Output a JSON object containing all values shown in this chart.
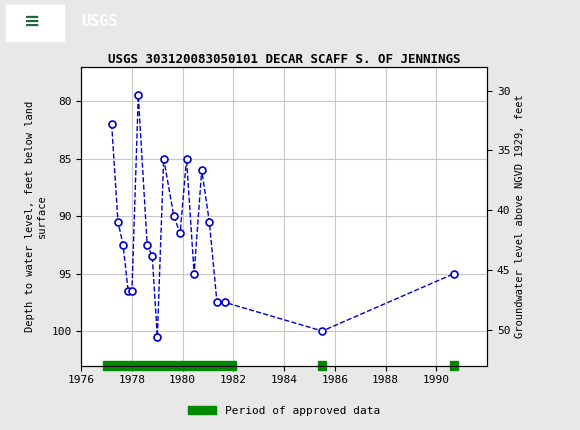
{
  "title": "USGS 303120083050101 DECAR SCAFF S. OF JENNINGS",
  "ylabel_left": "Depth to water level, feet below land\nsurface",
  "ylabel_right": "Groundwater level above NGVD 1929, feet",
  "background_color": "#e8e8e8",
  "plot_bg_color": "#ffffff",
  "header_color": "#1a6b3c",
  "line_color": "#0000cc",
  "marker_color": "#0000cc",
  "xlim": [
    1976,
    1992
  ],
  "ylim_left_top": 77,
  "ylim_left_bottom": 103,
  "ylim_right_top": 28,
  "ylim_right_bottom": 53,
  "xticks": [
    1976,
    1978,
    1980,
    1982,
    1984,
    1986,
    1988,
    1990
  ],
  "yticks_left": [
    80,
    85,
    90,
    95,
    100
  ],
  "yticks_right": [
    50,
    45,
    40,
    35,
    30
  ],
  "data_x": [
    1977.2,
    1977.45,
    1977.65,
    1977.85,
    1978.0,
    1978.25,
    1978.6,
    1978.8,
    1979.0,
    1979.25,
    1979.65,
    1979.9,
    1980.15,
    1980.45,
    1980.75,
    1981.05,
    1981.35,
    1981.65,
    1985.5,
    1990.7
  ],
  "data_y": [
    82.0,
    90.5,
    92.5,
    96.5,
    96.5,
    79.5,
    92.5,
    93.5,
    100.5,
    85.0,
    90.0,
    91.5,
    85.0,
    95.0,
    86.0,
    90.5,
    97.5,
    97.5,
    100.0,
    95.0
  ],
  "approved_bars": [
    {
      "xstart": 1976.85,
      "xend": 1982.1
    },
    {
      "xstart": 1985.35,
      "xend": 1985.65
    },
    {
      "xstart": 1990.55,
      "xend": 1990.85
    }
  ],
  "approved_color": "#008800",
  "approved_bar_height": 0.7,
  "grid_color": "#c8c8c8",
  "font_family": "monospace",
  "title_fontsize": 9,
  "axis_label_fontsize": 7.5,
  "tick_fontsize": 8
}
